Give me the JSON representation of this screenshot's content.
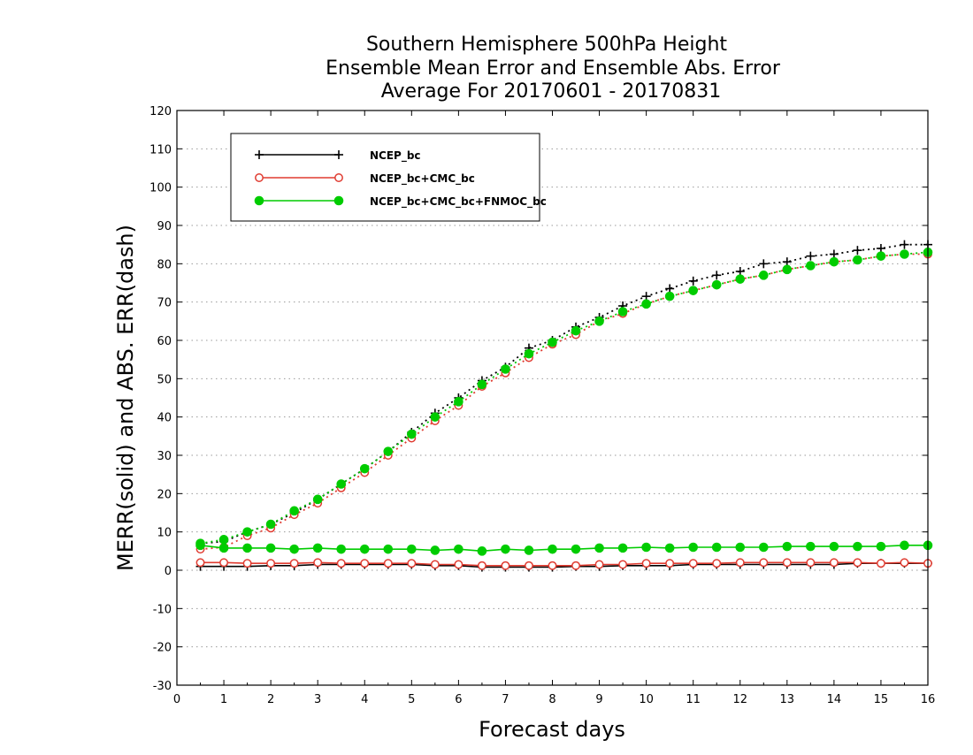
{
  "chart_data": {
    "type": "line",
    "title": [
      "Southern Hemisphere 500hPa Height",
      "Ensemble Mean Error and Ensemble Abs. Error",
      "Average For 20170601 - 20170831"
    ],
    "xlabel": "Forecast days",
    "ylabel": "MERR(solid) and ABS. ERR(dash)",
    "xlim": [
      0,
      16
    ],
    "ylim": [
      -30,
      120
    ],
    "xticks": [
      "0",
      "1",
      "2",
      "3",
      "4",
      "5",
      "6",
      "7",
      "8",
      "9",
      "10",
      "11",
      "12",
      "13",
      "14",
      "15",
      "16"
    ],
    "yticks": [
      "-30",
      "-20",
      "-10",
      "0",
      "10",
      "20",
      "30",
      "40",
      "50",
      "60",
      "70",
      "80",
      "90",
      "100",
      "110",
      "120"
    ],
    "grid": true,
    "legend_position": "top-left",
    "x": [
      0.5,
      1,
      1.5,
      2,
      2.5,
      3,
      3.5,
      4,
      4.5,
      5,
      5.5,
      6,
      6.5,
      7,
      7.5,
      8,
      8.5,
      9,
      9.5,
      10,
      10.5,
      11,
      11.5,
      12,
      12.5,
      13,
      13.5,
      14,
      14.5,
      15,
      15.5,
      16
    ],
    "series": [
      {
        "name": "NCEP_bc",
        "color": "#000000",
        "marker": "plus",
        "merr": [
          1,
          1,
          1,
          1.2,
          1.2,
          1.5,
          1.5,
          1.5,
          1.5,
          1.5,
          1.2,
          1.2,
          0.8,
          0.8,
          0.8,
          0.8,
          1,
          1,
          1.2,
          1.2,
          1.2,
          1.5,
          1.5,
          1.5,
          1.5,
          1.5,
          1.5,
          1.5,
          1.8,
          1.8,
          1.8,
          1.8
        ],
        "abs_err": [
          7,
          7.5,
          10,
          12,
          15,
          18.5,
          22.5,
          26.5,
          31,
          36,
          41,
          45,
          49.5,
          53,
          58,
          60,
          63.5,
          66,
          69,
          71.5,
          73.5,
          75.5,
          77,
          78,
          80,
          80.5,
          82,
          82.5,
          83.5,
          84,
          85,
          85
        ]
      },
      {
        "name": "NCEP_bc+CMC_bc",
        "color": "#e03c31",
        "marker": "open-circle",
        "merr": [
          2,
          2,
          1.8,
          1.8,
          1.8,
          2,
          1.8,
          1.8,
          1.8,
          1.8,
          1.5,
          1.5,
          1.2,
          1.2,
          1.2,
          1.2,
          1.2,
          1.5,
          1.5,
          1.8,
          1.8,
          1.8,
          1.8,
          2,
          2,
          2,
          2,
          2,
          2,
          1.8,
          2,
          1.8
        ],
        "abs_err": [
          5.5,
          6,
          9,
          11,
          14.5,
          17.5,
          21.5,
          25.5,
          30,
          34.5,
          39,
          43,
          48,
          51.5,
          55.5,
          59,
          61.5,
          65,
          67,
          69.5,
          71.5,
          73,
          74.5,
          76,
          77,
          78.5,
          79.5,
          80.5,
          81,
          82,
          82.5,
          82.5
        ]
      },
      {
        "name": "NCEP_bc+CMC_bc+FNMOC_bc",
        "color": "#00cc00",
        "marker": "filled-circle",
        "merr": [
          6.5,
          5.8,
          5.8,
          5.8,
          5.5,
          5.8,
          5.5,
          5.5,
          5.5,
          5.5,
          5.2,
          5.5,
          5,
          5.5,
          5.2,
          5.5,
          5.5,
          5.8,
          5.8,
          6,
          5.8,
          6,
          6,
          6,
          6,
          6.2,
          6.2,
          6.2,
          6.2,
          6.2,
          6.5,
          6.5
        ],
        "abs_err": [
          7,
          8,
          10,
          12,
          15.5,
          18.5,
          22.5,
          26.5,
          31,
          35.5,
          40,
          44,
          48.5,
          52.5,
          56.5,
          59.5,
          62.5,
          65,
          67.5,
          69.5,
          71.5,
          73,
          74.5,
          76,
          77,
          78.5,
          79.5,
          80.5,
          81,
          82,
          82.5,
          83
        ]
      }
    ]
  }
}
